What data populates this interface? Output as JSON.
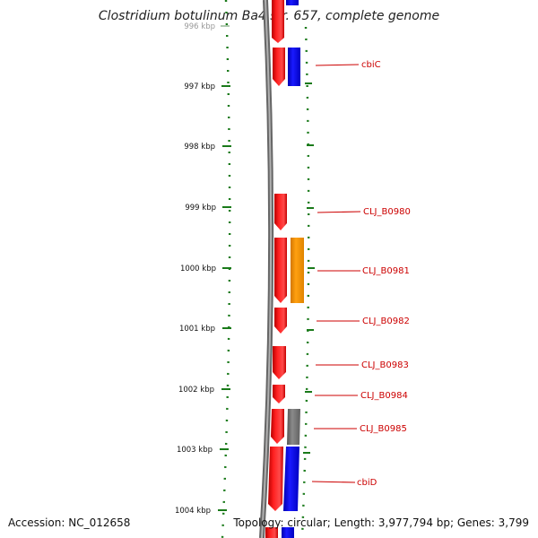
{
  "header": {
    "title": "Clostridium botulinum Ba4 str. 657, complete genome"
  },
  "footer": {
    "accession": "Accession: NC_012658",
    "topology": "Topology: circular; Length: 3,977,794 bp; Genes: 3,799"
  },
  "scale": {
    "unit": "kbp",
    "labels": [
      "996 kbp",
      "997 kbp",
      "998 kbp",
      "999 kbp",
      "1000 kbp",
      "1001 kbp",
      "1002 kbp",
      "1003 kbp",
      "1004 kbp"
    ]
  },
  "colors": {
    "forward_cds": "#ff0000",
    "reverse_cds": "#0000ff",
    "orange_feature": "#ff9900",
    "gray_feature": "#777777",
    "backbone": "#888888",
    "tick_green": "#1a7a1a",
    "label_red": "#cc0000"
  },
  "genes": [
    {
      "label": "cbiC"
    },
    {
      "label": "CLJ_B0980"
    },
    {
      "label": "CLJ_B0981"
    },
    {
      "label": "CLJ_B0982"
    },
    {
      "label": "CLJ_B0983"
    },
    {
      "label": "CLJ_B0984"
    },
    {
      "label": "CLJ_B0985"
    },
    {
      "label": "cbiD"
    }
  ]
}
